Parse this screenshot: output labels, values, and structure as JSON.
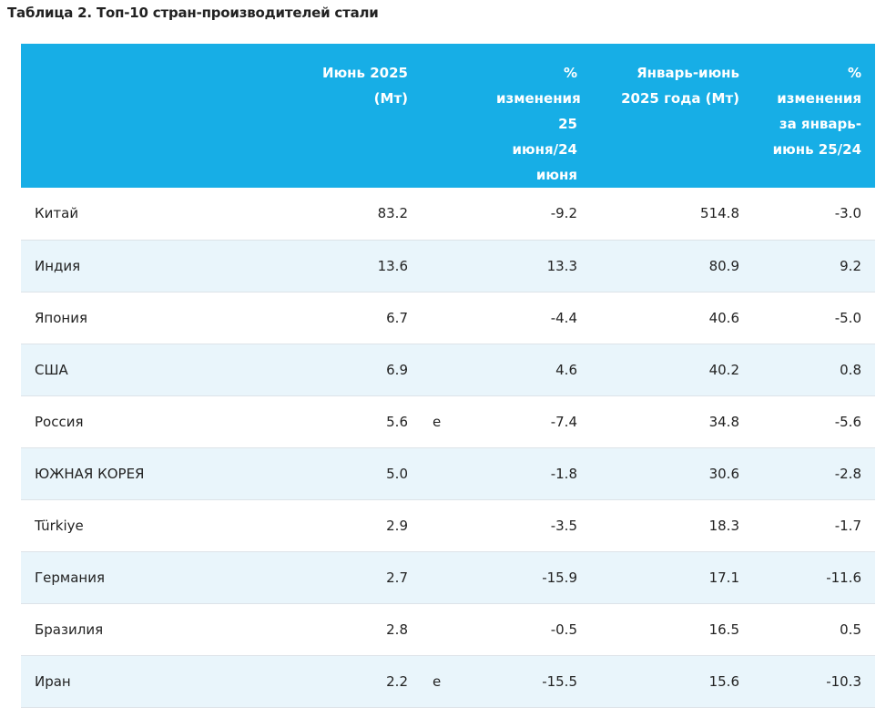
{
  "title": "Таблица 2. Топ-10 стран-производителей стали",
  "table": {
    "header": [
      null,
      "Июнь 2025 (Мт)",
      null,
      "% изменения 25 июня/24 июня",
      "Январь-июнь 2025 года (Мт)",
      "% изменения за январь-июнь 25/24"
    ],
    "rows": [
      [
        "Китай",
        "83.2",
        null,
        "-9.2",
        "514.8",
        "-3.0"
      ],
      [
        "Индия",
        "13.6",
        null,
        "13.3",
        "80.9",
        "9.2"
      ],
      [
        "Япония",
        "6.7",
        null,
        "-4.4",
        "40.6",
        "-5.0"
      ],
      [
        "США",
        "6.9",
        null,
        "4.6",
        "40.2",
        "0.8"
      ],
      [
        "Россия",
        "5.6",
        "e",
        "-7.4",
        "34.8",
        "-5.6"
      ],
      [
        "ЮЖНАЯ КОРЕЯ",
        "5.0",
        null,
        "-1.8",
        "30.6",
        "-2.8"
      ],
      [
        "Türkiye",
        "2.9",
        null,
        "-3.5",
        "18.3",
        "-1.7"
      ],
      [
        "Германия",
        "2.7",
        null,
        "-15.9",
        "17.1",
        "-11.6"
      ],
      [
        "Бразилия",
        "2.8",
        null,
        "-0.5",
        "16.5",
        "0.5"
      ],
      [
        "Иран",
        "2.2",
        "e",
        "-15.5",
        "15.6",
        "-10.3"
      ]
    ]
  }
}
